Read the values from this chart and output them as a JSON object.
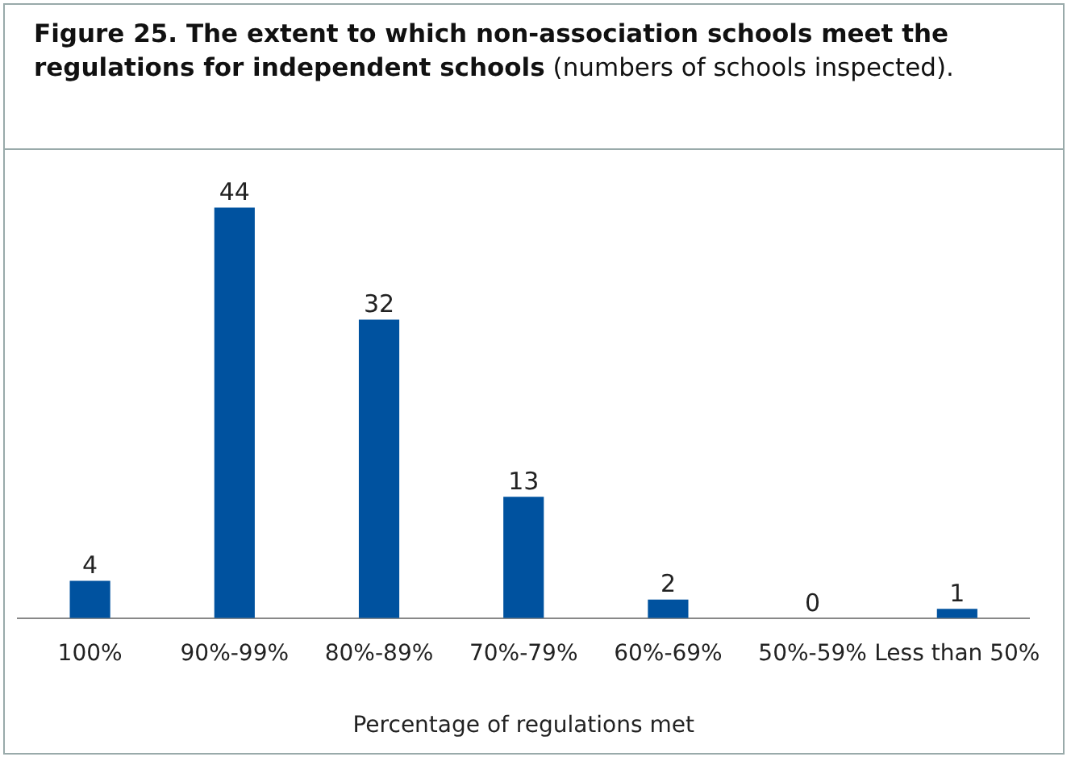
{
  "chart_data": {
    "type": "bar",
    "title": "Figure 25. The extent to which non-association schools meet the regulations for independent schools",
    "subtitle": "(numbers of schools inspected).",
    "xlabel": "Percentage of regulations met",
    "categories": [
      "100%",
      "90%-99%",
      "80%-89%",
      "70%-79%",
      "60%-69%",
      "50%-59%",
      "Less than 50%"
    ],
    "values": [
      4,
      44,
      32,
      13,
      2,
      0,
      1
    ],
    "color": "#00529f",
    "data_labels": true,
    "grid": false,
    "legend": false
  }
}
